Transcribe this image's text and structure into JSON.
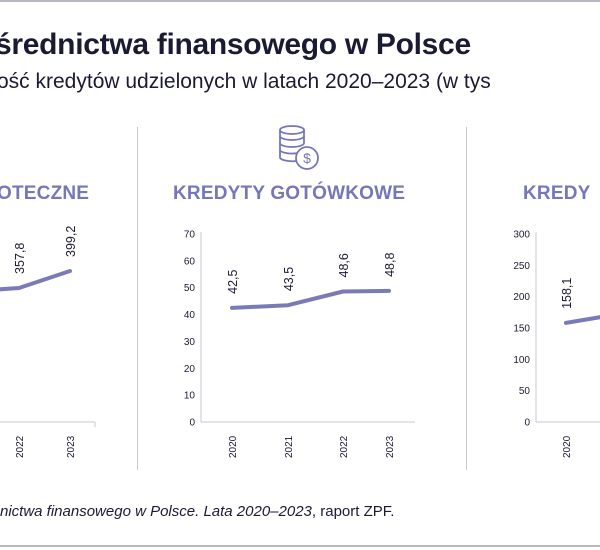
{
  "header": {
    "title": "średnictwa finansowego w Polsce",
    "subtitle": "ość kredytów udzielonych w latach 2020–2023 (w tys"
  },
  "footer": {
    "source_italic": "nictwa finansowego w Polsce. Lata 2020–2023",
    "source_rest": ", raport ZPF."
  },
  "icons": {
    "center": "coin-stack-dollar-icon"
  },
  "colors": {
    "line": "#7a7bb6",
    "accent": "#7577b8",
    "axis": "#c9c9cf"
  },
  "chart_data": [
    {
      "type": "line",
      "title": "OTECZNE",
      "categories": [
        "2022",
        "2023"
      ],
      "series": [
        {
          "values": [
            357.8,
            399.2
          ]
        }
      ],
      "value_labels": [
        "357,8",
        "399,2"
      ]
    },
    {
      "type": "line",
      "title": "KREDYTY GOTÓWKOWE",
      "categories": [
        "2020",
        "2021",
        "2022",
        "2023"
      ],
      "series": [
        {
          "values": [
            42.5,
            43.5,
            48.6,
            48.8
          ]
        }
      ],
      "value_labels": [
        "42,5",
        "43,5",
        "48,6",
        "48,8"
      ],
      "ylim": [
        0,
        70
      ],
      "yticks": [
        "0",
        "10",
        "20",
        "30",
        "40",
        "50",
        "60",
        "70"
      ],
      "grid": false
    },
    {
      "type": "line",
      "title": "KREDY",
      "categories": [
        "2020"
      ],
      "series": [
        {
          "values": [
            158.1
          ]
        }
      ],
      "value_labels": [
        "158,1"
      ],
      "ylim": [
        0,
        300
      ],
      "yticks": [
        "0",
        "50",
        "100",
        "150",
        "200",
        "250",
        "300"
      ],
      "grid": false
    }
  ]
}
